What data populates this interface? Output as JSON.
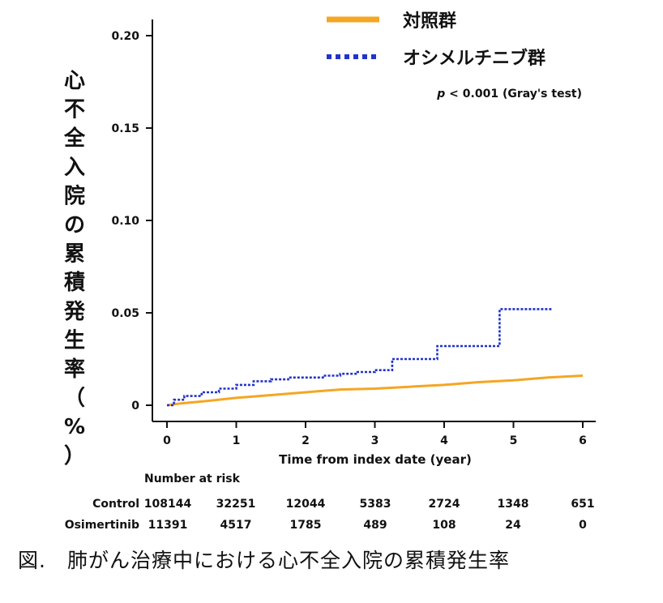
{
  "chart_data": {
    "type": "line",
    "ylabel": "心不全入院の累積発生率（%）",
    "xlabel": "Time from index date (year)",
    "x_ticks": [
      0,
      1,
      2,
      3,
      4,
      5,
      6
    ],
    "y_ticks": [
      "0",
      "0.05",
      "0.10",
      "0.15",
      "0.20"
    ],
    "y_tick_values": [
      0,
      0.05,
      0.1,
      0.15,
      0.2
    ],
    "xlim": [
      0,
      6
    ],
    "ylim": [
      0,
      0.2
    ],
    "annotation": {
      "p": "p",
      "rest": " < 0.001 (Gray's test)"
    },
    "legend_position": "top-right",
    "series": [
      {
        "name": "対照群",
        "color": "#F5A623",
        "style": "solid",
        "x": [
          0,
          0.2,
          0.5,
          1,
          1.5,
          2,
          2.5,
          3,
          3.5,
          4,
          4.5,
          5,
          5.5,
          6
        ],
        "y": [
          0,
          0.001,
          0.002,
          0.004,
          0.0055,
          0.007,
          0.0085,
          0.009,
          0.01,
          0.011,
          0.0125,
          0.0135,
          0.015,
          0.016
        ]
      },
      {
        "name": "オシメルチニブ群",
        "color": "#2233CC",
        "style": "dotted",
        "step": true,
        "x": [
          0,
          0.1,
          0.25,
          0.5,
          0.75,
          1,
          1.25,
          1.5,
          1.75,
          2,
          2.25,
          2.5,
          2.75,
          3,
          3.2,
          3.25,
          3.5,
          3.75,
          3.9,
          4.2,
          4.5,
          4.7,
          4.8,
          5.1,
          5.3,
          5.55
        ],
        "y": [
          0,
          0.003,
          0.005,
          0.007,
          0.009,
          0.011,
          0.013,
          0.014,
          0.015,
          0.015,
          0.016,
          0.017,
          0.018,
          0.019,
          0.019,
          0.025,
          0.025,
          0.025,
          0.032,
          0.032,
          0.032,
          0.032,
          0.052,
          0.052,
          0.052,
          0.052
        ]
      }
    ],
    "risk_table": {
      "title": "Number at risk",
      "rows": [
        {
          "label": "Control",
          "values": [
            "108144",
            "32251",
            "12044",
            "5383",
            "2724",
            "1348",
            "651"
          ]
        },
        {
          "label": "Osimertinib",
          "values": [
            "11391",
            "4517",
            "1785",
            "489",
            "108",
            "24",
            "0"
          ]
        }
      ]
    }
  },
  "caption": "図.　肺がん治療中における心不全入院の累積発生率"
}
